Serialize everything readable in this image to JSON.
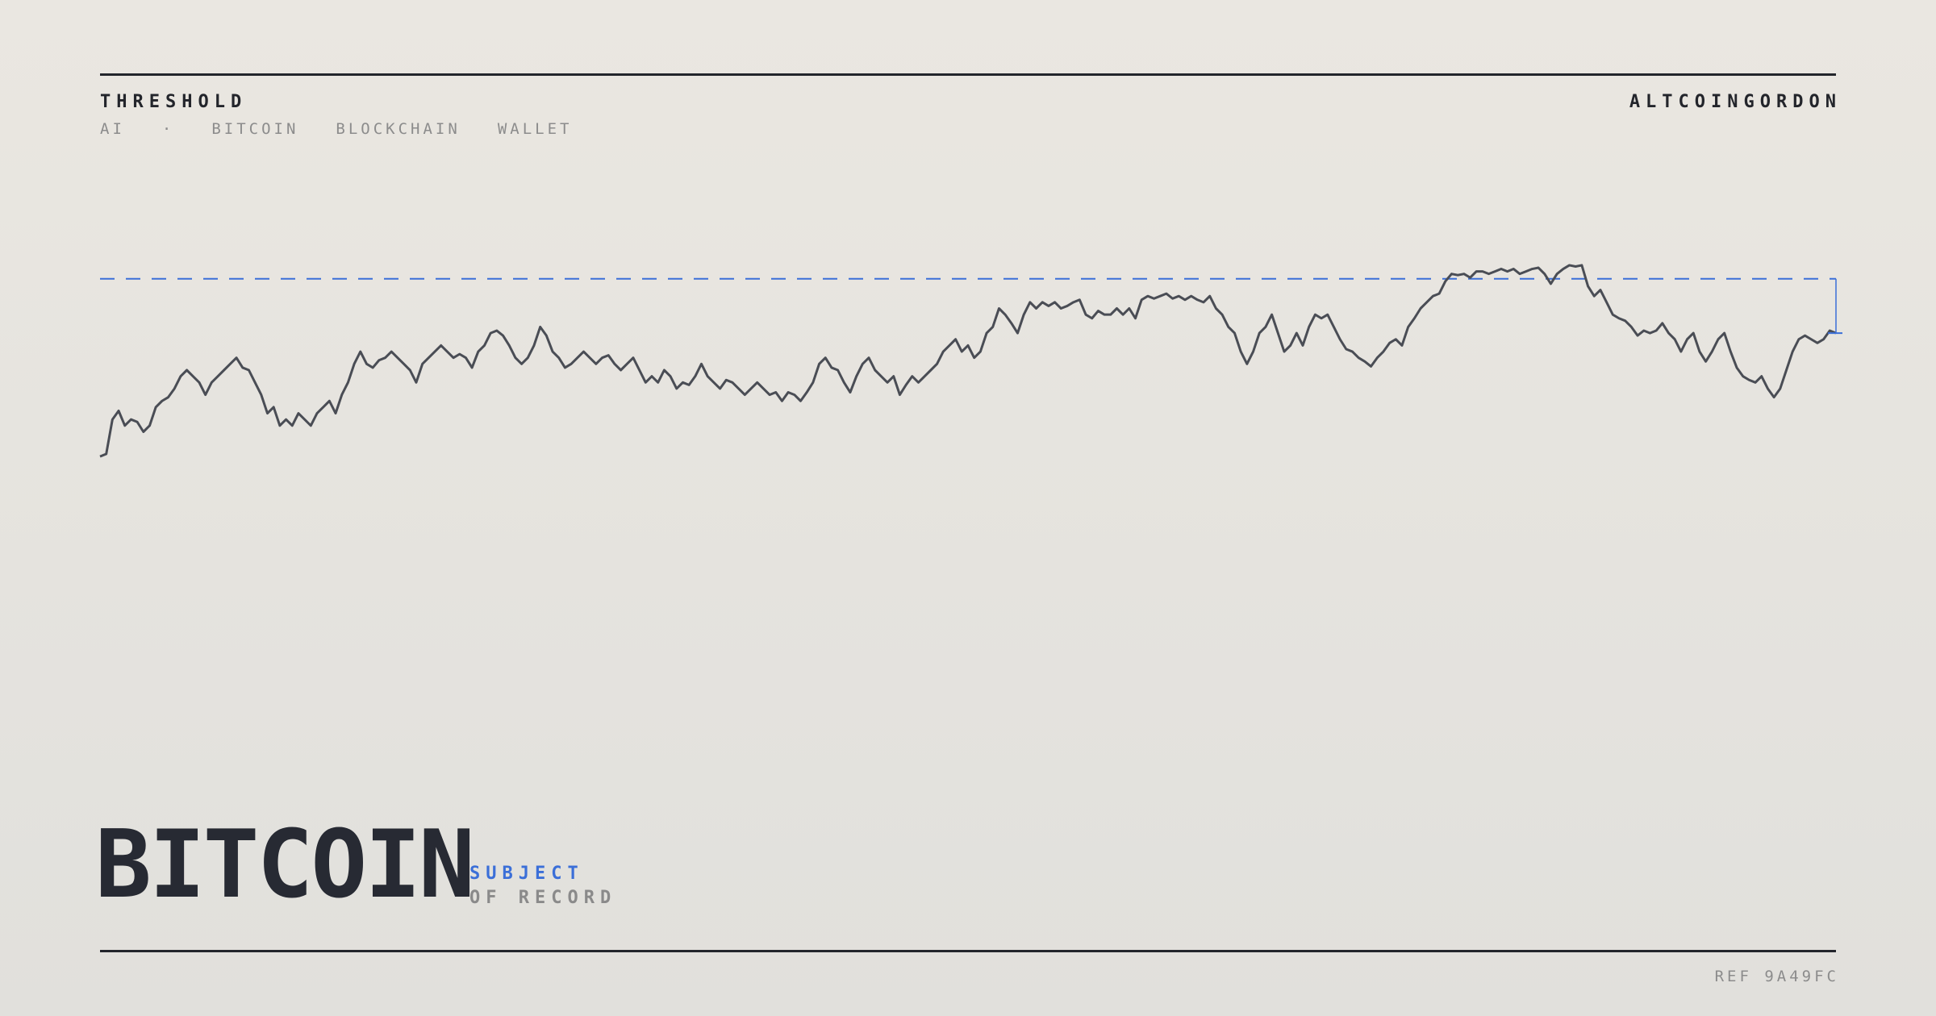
{
  "header": {
    "title": "THRESHOLD",
    "tags": [
      "AI",
      "·",
      "BITCOIN",
      "BLOCKCHAIN",
      "WALLET"
    ],
    "author": "ALTCOINGORDON"
  },
  "chart_data": {
    "type": "line",
    "color": "#4a4d55",
    "threshold": 174,
    "threshold_color": "#3b6fd8",
    "ylim": [
      0,
      400
    ],
    "values": [
      30,
      32,
      60,
      67,
      55,
      60,
      58,
      50,
      55,
      70,
      75,
      78,
      85,
      95,
      100,
      95,
      90,
      80,
      90,
      95,
      100,
      105,
      110,
      102,
      100,
      90,
      80,
      65,
      70,
      55,
      60,
      55,
      65,
      60,
      55,
      65,
      70,
      75,
      65,
      80,
      90,
      105,
      115,
      105,
      102,
      108,
      110,
      115,
      110,
      105,
      100,
      90,
      105,
      110,
      115,
      120,
      115,
      110,
      113,
      110,
      102,
      115,
      120,
      130,
      132,
      128,
      120,
      110,
      105,
      110,
      120,
      135,
      128,
      115,
      110,
      102,
      105,
      110,
      115,
      110,
      105,
      110,
      112,
      105,
      100,
      105,
      110,
      100,
      90,
      95,
      90,
      100,
      95,
      85,
      90,
      88,
      95,
      105,
      95,
      90,
      85,
      92,
      90,
      85,
      80,
      85,
      90,
      85,
      80,
      82,
      75,
      82,
      80,
      75,
      82,
      90,
      105,
      110,
      102,
      100,
      90,
      82,
      95,
      105,
      110,
      100,
      95,
      90,
      95,
      80,
      88,
      95,
      90,
      95,
      100,
      105,
      115,
      120,
      125,
      115,
      120,
      110,
      115,
      130,
      135,
      150,
      145,
      138,
      130,
      145,
      155,
      150,
      155,
      152,
      155,
      150,
      152,
      155,
      157,
      145,
      142,
      148,
      145,
      145,
      150,
      145,
      150,
      142,
      157,
      160,
      158,
      160,
      162,
      158,
      160,
      157,
      160,
      157,
      155,
      160,
      150,
      145,
      135,
      130,
      115,
      105,
      115,
      130,
      135,
      145,
      130,
      115,
      120,
      130,
      120,
      135,
      145,
      142,
      145,
      135,
      125,
      117,
      115,
      110,
      107,
      103,
      110,
      115,
      122,
      125,
      120,
      135,
      142,
      150,
      155,
      160,
      162,
      172,
      178,
      177,
      178,
      175,
      180,
      180,
      178,
      180,
      182,
      180,
      182,
      178,
      180,
      182,
      183,
      178,
      170,
      178,
      182,
      185,
      184,
      185,
      168,
      160,
      165,
      155,
      145,
      142,
      140,
      135,
      128,
      132,
      130,
      132,
      138,
      130,
      125,
      115,
      125,
      130,
      115,
      107,
      115,
      125,
      130,
      115,
      102,
      95,
      92,
      90,
      95,
      85,
      78,
      85,
      100,
      115,
      125,
      128,
      125,
      122,
      125,
      132,
      130
    ]
  },
  "footer": {
    "title": "BITCOIN",
    "subtitle_accent": "SUBJECT",
    "subtitle": "OF RECORD",
    "ref": "REF 9A49FC"
  }
}
